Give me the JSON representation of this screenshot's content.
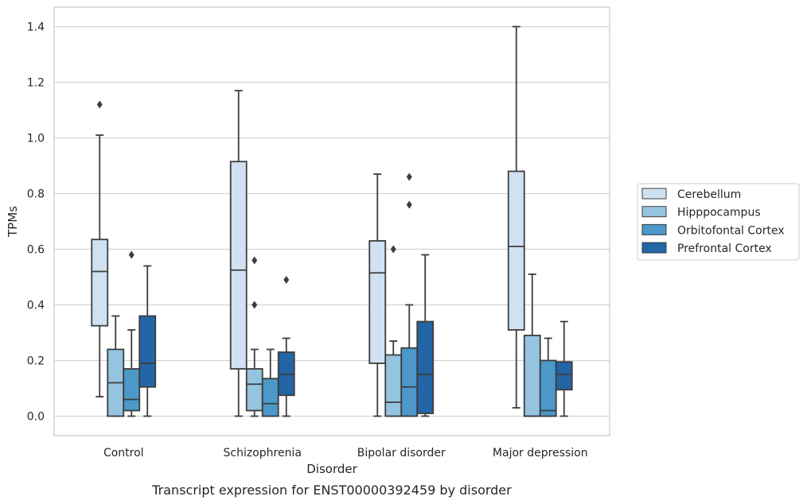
{
  "chart_data": {
    "type": "box",
    "categories": [
      "Control",
      "Schizophrenia",
      "Bipolar disorder",
      "Major depression"
    ],
    "xlabel": "Disorder",
    "ylabel": "TPMs",
    "caption": "Transcript expression for ENST00000392459 by disorder",
    "ylim": [
      -0.07,
      1.47
    ],
    "yticks": [
      0.0,
      0.2,
      0.4,
      0.6,
      0.8,
      1.0,
      1.2,
      1.4
    ],
    "ytick_labels": [
      "0.0",
      "0.2",
      "0.4",
      "0.6",
      "0.8",
      "1.0",
      "1.2",
      "1.4"
    ],
    "grid": true,
    "legend_position": "right",
    "series": [
      {
        "name": "Cerebellum",
        "color": "#d0e1f2",
        "boxes": [
          {
            "whisker_low": 0.07,
            "q1": 0.325,
            "median": 0.52,
            "q3": 0.635,
            "whisker_high": 1.01,
            "outliers": [
              1.12
            ]
          },
          {
            "whisker_low": 0.0,
            "q1": 0.17,
            "median": 0.525,
            "q3": 0.915,
            "whisker_high": 1.17,
            "outliers": []
          },
          {
            "whisker_low": 0.0,
            "q1": 0.19,
            "median": 0.515,
            "q3": 0.63,
            "whisker_high": 0.87,
            "outliers": []
          },
          {
            "whisker_low": 0.03,
            "q1": 0.31,
            "median": 0.61,
            "q3": 0.88,
            "whisker_high": 1.4,
            "outliers": []
          }
        ]
      },
      {
        "name": "Hipppocampus",
        "color": "#94c4df",
        "boxes": [
          {
            "whisker_low": 0.0,
            "q1": 0.0,
            "median": 0.12,
            "q3": 0.24,
            "whisker_high": 0.36,
            "outliers": []
          },
          {
            "whisker_low": 0.0,
            "q1": 0.02,
            "median": 0.115,
            "q3": 0.17,
            "whisker_high": 0.24,
            "outliers": [
              0.4,
              0.56
            ]
          },
          {
            "whisker_low": 0.0,
            "q1": 0.0,
            "median": 0.05,
            "q3": 0.22,
            "whisker_high": 0.27,
            "outliers": [
              0.6
            ]
          },
          {
            "whisker_low": 0.0,
            "q1": 0.0,
            "median": 0.0,
            "q3": 0.29,
            "whisker_high": 0.51,
            "outliers": []
          }
        ]
      },
      {
        "name": "Orbitofontal Cortex",
        "color": "#4b98c9",
        "boxes": [
          {
            "whisker_low": 0.0,
            "q1": 0.02,
            "median": 0.06,
            "q3": 0.17,
            "whisker_high": 0.31,
            "outliers": [
              0.58
            ]
          },
          {
            "whisker_low": 0.0,
            "q1": 0.0,
            "median": 0.045,
            "q3": 0.135,
            "whisker_high": 0.24,
            "outliers": []
          },
          {
            "whisker_low": 0.0,
            "q1": 0.0,
            "median": 0.105,
            "q3": 0.245,
            "whisker_high": 0.4,
            "outliers": [
              0.76,
              0.86
            ]
          },
          {
            "whisker_low": 0.0,
            "q1": 0.0,
            "median": 0.02,
            "q3": 0.2,
            "whisker_high": 0.28,
            "outliers": []
          }
        ]
      },
      {
        "name": "Prefrontal Cortex",
        "color": "#2365a5",
        "boxes": [
          {
            "whisker_low": 0.0,
            "q1": 0.105,
            "median": 0.19,
            "q3": 0.36,
            "whisker_high": 0.54,
            "outliers": []
          },
          {
            "whisker_low": 0.0,
            "q1": 0.075,
            "median": 0.15,
            "q3": 0.23,
            "whisker_high": 0.28,
            "outliers": [
              0.49
            ]
          },
          {
            "whisker_low": 0.0,
            "q1": 0.01,
            "median": 0.15,
            "q3": 0.34,
            "whisker_high": 0.58,
            "outliers": []
          },
          {
            "whisker_low": 0.0,
            "q1": 0.095,
            "median": 0.15,
            "q3": 0.195,
            "whisker_high": 0.34,
            "outliers": []
          }
        ]
      }
    ]
  }
}
